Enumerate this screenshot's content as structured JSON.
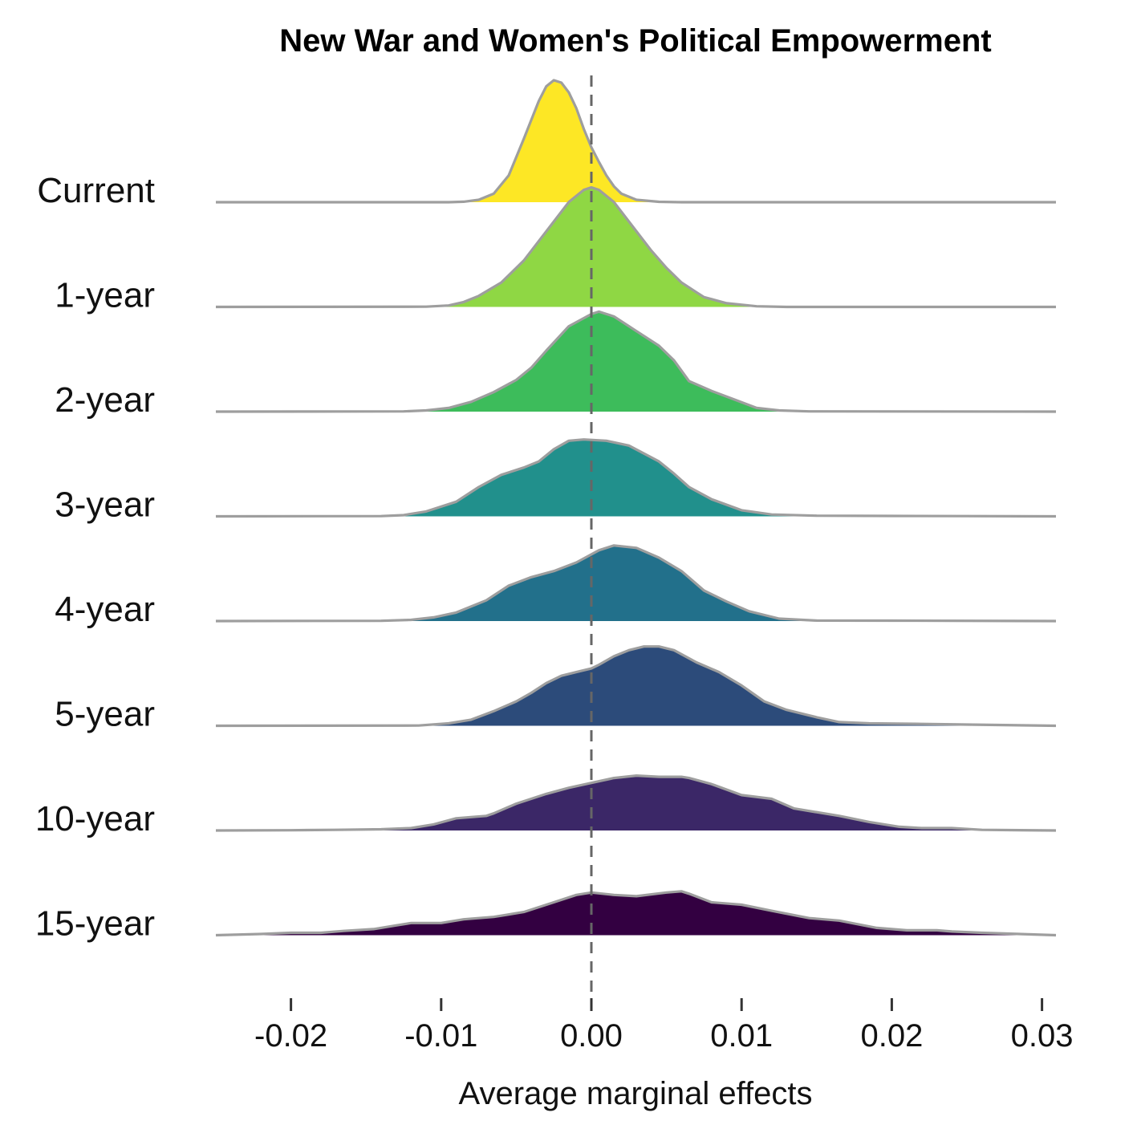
{
  "chart_data": {
    "type": "ridgeline",
    "title": "New War and Women's Political Empowerment",
    "xlabel": "Average marginal effects",
    "ylabel": "",
    "xlim": [
      -0.0255,
      0.031
    ],
    "x_ticks": [
      -0.02,
      -0.01,
      0.0,
      0.01,
      0.02,
      0.03
    ],
    "x_tick_labels": [
      "-0.02",
      "-0.01",
      "0.00",
      "0.01",
      "0.02",
      "0.03"
    ],
    "reference_line": {
      "x": 0.0,
      "style": "dashed"
    },
    "outline_color": "#9e9e9e",
    "series": [
      {
        "name": "Current",
        "color": "#fde725",
        "points": [
          [
            -0.0255,
            0
          ],
          [
            -0.0095,
            0
          ],
          [
            -0.0085,
            0.004
          ],
          [
            -0.0075,
            0.02
          ],
          [
            -0.0065,
            0.07
          ],
          [
            -0.0055,
            0.22
          ],
          [
            -0.0045,
            0.52
          ],
          [
            -0.0035,
            0.83
          ],
          [
            -0.003,
            0.95
          ],
          [
            -0.0025,
            1.0
          ],
          [
            -0.002,
            0.98
          ],
          [
            -0.0015,
            0.9
          ],
          [
            -0.001,
            0.77
          ],
          [
            -0.0005,
            0.6
          ],
          [
            0.0,
            0.45
          ],
          [
            0.0005,
            0.33
          ],
          [
            0.001,
            0.22
          ],
          [
            0.0015,
            0.13
          ],
          [
            0.002,
            0.07
          ],
          [
            0.003,
            0.02
          ],
          [
            0.0045,
            0.003
          ],
          [
            0.006,
            0
          ],
          [
            0.031,
            0
          ]
        ]
      },
      {
        "name": "1-year",
        "color": "#8fd744",
        "points": [
          [
            -0.0255,
            0
          ],
          [
            -0.011,
            0.002
          ],
          [
            -0.0095,
            0.012
          ],
          [
            -0.0085,
            0.04
          ],
          [
            -0.0075,
            0.09
          ],
          [
            -0.006,
            0.2
          ],
          [
            -0.0045,
            0.38
          ],
          [
            -0.003,
            0.62
          ],
          [
            -0.0015,
            0.86
          ],
          [
            -0.0005,
            0.96
          ],
          [
            0.0,
            0.98
          ],
          [
            0.0005,
            0.96
          ],
          [
            0.0015,
            0.86
          ],
          [
            0.0025,
            0.7
          ],
          [
            0.004,
            0.46
          ],
          [
            0.005,
            0.32
          ],
          [
            0.006,
            0.2
          ],
          [
            0.007,
            0.12
          ],
          [
            0.0075,
            0.08
          ],
          [
            0.009,
            0.03
          ],
          [
            0.011,
            0.005
          ],
          [
            0.013,
            0
          ],
          [
            0.031,
            0
          ]
        ]
      },
      {
        "name": "2-year",
        "color": "#3dbc5b",
        "points": [
          [
            -0.0255,
            0
          ],
          [
            -0.0125,
            0.002
          ],
          [
            -0.011,
            0.01
          ],
          [
            -0.0095,
            0.03
          ],
          [
            -0.008,
            0.08
          ],
          [
            -0.0065,
            0.16
          ],
          [
            -0.005,
            0.26
          ],
          [
            -0.004,
            0.36
          ],
          [
            -0.003,
            0.5
          ],
          [
            -0.0015,
            0.7
          ],
          [
            0.0,
            0.8
          ],
          [
            0.0005,
            0.82
          ],
          [
            0.0015,
            0.78
          ],
          [
            0.003,
            0.66
          ],
          [
            0.0045,
            0.54
          ],
          [
            0.0055,
            0.42
          ],
          [
            0.0065,
            0.25
          ],
          [
            0.008,
            0.17
          ],
          [
            0.0095,
            0.1
          ],
          [
            0.011,
            0.03
          ],
          [
            0.0125,
            0.01
          ],
          [
            0.0145,
            0.002
          ],
          [
            0.031,
            0
          ]
        ]
      },
      {
        "name": "3-year",
        "color": "#21908c",
        "points": [
          [
            -0.0255,
            0
          ],
          [
            -0.014,
            0.002
          ],
          [
            -0.0125,
            0.01
          ],
          [
            -0.011,
            0.04
          ],
          [
            -0.009,
            0.12
          ],
          [
            -0.0075,
            0.24
          ],
          [
            -0.006,
            0.34
          ],
          [
            -0.0045,
            0.4
          ],
          [
            -0.0035,
            0.45
          ],
          [
            -0.0025,
            0.55
          ],
          [
            -0.0015,
            0.62
          ],
          [
            -0.0005,
            0.63
          ],
          [
            0.001,
            0.62
          ],
          [
            0.0025,
            0.58
          ],
          [
            0.0045,
            0.45
          ],
          [
            0.0055,
            0.35
          ],
          [
            0.0065,
            0.24
          ],
          [
            0.008,
            0.14
          ],
          [
            0.01,
            0.05
          ],
          [
            0.012,
            0.015
          ],
          [
            0.015,
            0.005
          ],
          [
            0.02,
            0.003
          ],
          [
            0.025,
            0.002
          ],
          [
            0.031,
            0
          ]
        ]
      },
      {
        "name": "4-year",
        "color": "#22708b",
        "points": [
          [
            -0.0255,
            0
          ],
          [
            -0.014,
            0.002
          ],
          [
            -0.012,
            0.01
          ],
          [
            -0.0105,
            0.03
          ],
          [
            -0.009,
            0.07
          ],
          [
            -0.007,
            0.17
          ],
          [
            -0.0055,
            0.29
          ],
          [
            -0.004,
            0.36
          ],
          [
            -0.0025,
            0.41
          ],
          [
            -0.001,
            0.48
          ],
          [
            0.0005,
            0.58
          ],
          [
            0.0015,
            0.62
          ],
          [
            0.003,
            0.6
          ],
          [
            0.0045,
            0.52
          ],
          [
            0.006,
            0.41
          ],
          [
            0.0075,
            0.25
          ],
          [
            0.009,
            0.16
          ],
          [
            0.0105,
            0.08
          ],
          [
            0.0125,
            0.02
          ],
          [
            0.015,
            0.004
          ],
          [
            0.02,
            0.003
          ],
          [
            0.031,
            0
          ]
        ]
      },
      {
        "name": "5-year",
        "color": "#2c4b7a",
        "points": [
          [
            -0.0255,
            0
          ],
          [
            -0.0115,
            0.002
          ],
          [
            -0.0095,
            0.02
          ],
          [
            -0.008,
            0.05
          ],
          [
            -0.0065,
            0.12
          ],
          [
            -0.005,
            0.2
          ],
          [
            -0.004,
            0.27
          ],
          [
            -0.003,
            0.35
          ],
          [
            -0.002,
            0.41
          ],
          [
            -0.001,
            0.44
          ],
          [
            0.0,
            0.47
          ],
          [
            0.0005,
            0.5
          ],
          [
            0.0015,
            0.57
          ],
          [
            0.0025,
            0.62
          ],
          [
            0.0035,
            0.65
          ],
          [
            0.0045,
            0.65
          ],
          [
            0.0055,
            0.62
          ],
          [
            0.007,
            0.52
          ],
          [
            0.0085,
            0.44
          ],
          [
            0.01,
            0.33
          ],
          [
            0.0115,
            0.2
          ],
          [
            0.013,
            0.13
          ],
          [
            0.015,
            0.07
          ],
          [
            0.0165,
            0.03
          ],
          [
            0.0185,
            0.02
          ],
          [
            0.022,
            0.015
          ],
          [
            0.025,
            0.01
          ],
          [
            0.031,
            0
          ]
        ]
      },
      {
        "name": "10-year",
        "color": "#3b2767",
        "points": [
          [
            -0.0255,
            0
          ],
          [
            -0.02,
            0.002
          ],
          [
            -0.017,
            0.005
          ],
          [
            -0.014,
            0.01
          ],
          [
            -0.012,
            0.02
          ],
          [
            -0.0105,
            0.05
          ],
          [
            -0.009,
            0.1
          ],
          [
            -0.007,
            0.12
          ],
          [
            -0.0065,
            0.14
          ],
          [
            -0.005,
            0.22
          ],
          [
            -0.003,
            0.3
          ],
          [
            -0.0015,
            0.35
          ],
          [
            0.0,
            0.39
          ],
          [
            0.0015,
            0.43
          ],
          [
            0.003,
            0.45
          ],
          [
            0.0045,
            0.44
          ],
          [
            0.006,
            0.44
          ],
          [
            0.0065,
            0.43
          ],
          [
            0.008,
            0.38
          ],
          [
            0.01,
            0.29
          ],
          [
            0.012,
            0.26
          ],
          [
            0.0135,
            0.18
          ],
          [
            0.0165,
            0.12
          ],
          [
            0.0185,
            0.07
          ],
          [
            0.0205,
            0.03
          ],
          [
            0.022,
            0.02
          ],
          [
            0.024,
            0.02
          ],
          [
            0.026,
            0.005
          ],
          [
            0.031,
            0
          ]
        ]
      },
      {
        "name": "15-year",
        "color": "#330041",
        "points": [
          [
            -0.0255,
            0
          ],
          [
            -0.022,
            0.01
          ],
          [
            -0.02,
            0.02
          ],
          [
            -0.018,
            0.02
          ],
          [
            -0.0165,
            0.035
          ],
          [
            -0.0145,
            0.05
          ],
          [
            -0.013,
            0.08
          ],
          [
            -0.012,
            0.1
          ],
          [
            -0.01,
            0.1
          ],
          [
            -0.0085,
            0.13
          ],
          [
            -0.0065,
            0.15
          ],
          [
            -0.0045,
            0.19
          ],
          [
            -0.004,
            0.21
          ],
          [
            -0.0025,
            0.27
          ],
          [
            -0.001,
            0.33
          ],
          [
            0.0,
            0.35
          ],
          [
            0.0015,
            0.33
          ],
          [
            0.003,
            0.32
          ],
          [
            0.005,
            0.35
          ],
          [
            0.006,
            0.36
          ],
          [
            0.0065,
            0.34
          ],
          [
            0.008,
            0.27
          ],
          [
            0.01,
            0.25
          ],
          [
            0.012,
            0.2
          ],
          [
            0.0145,
            0.14
          ],
          [
            0.0165,
            0.12
          ],
          [
            0.019,
            0.06
          ],
          [
            0.021,
            0.04
          ],
          [
            0.023,
            0.04
          ],
          [
            0.024,
            0.03
          ],
          [
            0.026,
            0.02
          ],
          [
            0.031,
            0
          ]
        ]
      }
    ]
  }
}
